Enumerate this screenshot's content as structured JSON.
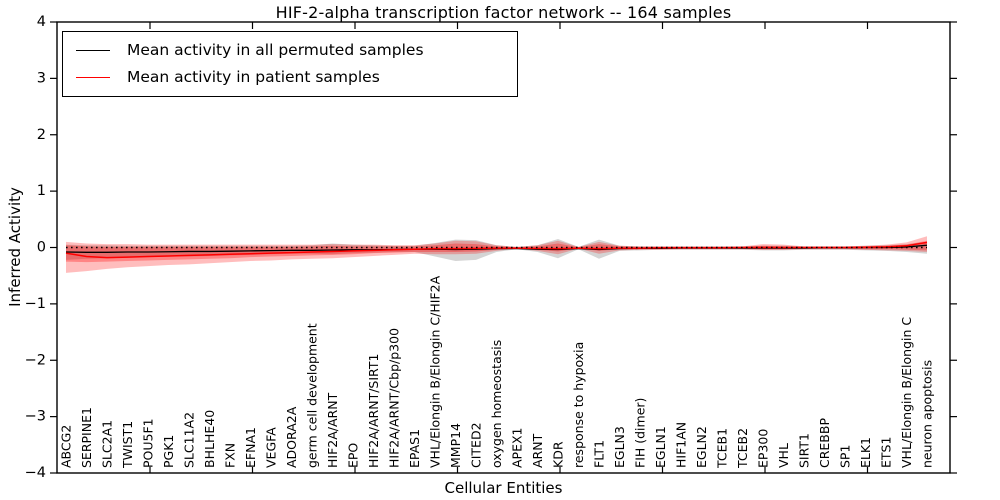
{
  "title": "HIF-2-alpha transcription factor network -- 164 samples",
  "legend": {
    "items": [
      {
        "label": "Mean activity in all permuted samples",
        "color": "#000000"
      },
      {
        "label": "Mean activity in patient samples",
        "color": "#ff0000"
      }
    ],
    "position": "upper left"
  },
  "colors": {
    "permuted_line": "#000000",
    "patient_line": "#ff0000",
    "permuted_band": "#000000",
    "patient_band": "#ff0000",
    "axis": "#000000",
    "background": "#ffffff"
  },
  "chart_data": {
    "type": "line",
    "title": "HIF-2-alpha transcription factor network -- 164 samples",
    "xlabel": "Cellular Entities",
    "ylabel": "Inferred Activity",
    "ylim": [
      -4,
      4
    ],
    "yticks": [
      4,
      3,
      2,
      1,
      0,
      -1,
      -2,
      -3,
      -4
    ],
    "yticklabels": [
      "4",
      "3",
      "2",
      "1",
      "0",
      "−1",
      "−2",
      "−3",
      "−4"
    ],
    "grid": false,
    "zero_reference_line": {
      "y": 0,
      "style": "dotted",
      "color": "#000000"
    },
    "top_tick_category_indices": [
      4,
      9,
      14,
      19,
      24,
      29,
      34,
      39
    ],
    "categories": [
      "ABCG2",
      "SERPINE1",
      "SLC2A1",
      "TWIST1",
      "POU5F1",
      "PGK1",
      "SLC11A2",
      "BHLHE40",
      "FXN",
      "EFNA1",
      "VEGFA",
      "ADORA2A",
      "germ cell development",
      "HIF2A/ARNT",
      "EPO",
      "HIF2A/ARNT/SIRT1",
      "HIF2A/ARNT/Cbp/p300",
      "EPAS1",
      "VHL/Elongin B/Elongin C/HIF2A",
      "MMP14",
      "CITED2",
      "oxygen homeostasis",
      "APEX1",
      "ARNT",
      "KDR",
      "response to hypoxia",
      "FLT1",
      "EGLN3",
      "FIH (dimer)",
      "EGLN1",
      "HIF1AN",
      "EGLN2",
      "TCEB1",
      "TCEB2",
      "EP300",
      "VHL",
      "SIRT1",
      "CREBBP",
      "SP1",
      "ELK1",
      "ETS1",
      "VHL/Elongin B/Elongin C",
      "neuron apoptosis"
    ],
    "series": [
      {
        "name": "Mean activity in all permuted samples",
        "color": "#000000",
        "values": [
          -0.08,
          -0.085,
          -0.085,
          -0.08,
          -0.08,
          -0.075,
          -0.07,
          -0.07,
          -0.065,
          -0.06,
          -0.055,
          -0.05,
          -0.05,
          -0.045,
          -0.04,
          -0.04,
          -0.035,
          -0.03,
          -0.03,
          -0.035,
          -0.03,
          -0.02,
          -0.02,
          -0.03,
          -0.035,
          -0.02,
          -0.035,
          -0.02,
          -0.015,
          -0.015,
          -0.01,
          -0.01,
          -0.01,
          -0.01,
          -0.01,
          -0.01,
          -0.01,
          -0.005,
          -0.005,
          0,
          0,
          0.01,
          0.04
        ]
      },
      {
        "name": "Mean activity in patient samples",
        "color": "#ff0000",
        "values": [
          -0.1,
          -0.16,
          -0.18,
          -0.17,
          -0.16,
          -0.15,
          -0.14,
          -0.13,
          -0.12,
          -0.11,
          -0.1,
          -0.09,
          -0.08,
          -0.07,
          -0.06,
          -0.05,
          -0.04,
          -0.03,
          -0.02,
          -0.02,
          -0.015,
          -0.01,
          -0.01,
          -0.015,
          -0.02,
          -0.01,
          -0.02,
          -0.01,
          -0.01,
          -0.005,
          -0.005,
          -0.005,
          -0.005,
          0,
          0,
          0,
          0,
          0,
          0,
          0.005,
          0.01,
          0.03,
          0.09
        ]
      }
    ],
    "bands": [
      {
        "name": "permuted-envelope",
        "color": "#000000",
        "opacity": 0.17,
        "upper": [
          0.05,
          0.04,
          0.04,
          0.03,
          0.03,
          0.03,
          0.03,
          0.03,
          0.03,
          0.03,
          0.03,
          0.03,
          0.04,
          0.07,
          0.05,
          0.04,
          0.03,
          0.03,
          0.08,
          0.14,
          0.13,
          0.04,
          0.01,
          0.04,
          0.15,
          0.01,
          0.14,
          0.03,
          0.02,
          0.02,
          0.02,
          0.02,
          0.02,
          0.02,
          0.03,
          0.03,
          0.02,
          0.02,
          0.02,
          0.03,
          0.04,
          0.06,
          0.1
        ],
        "lower": [
          -0.22,
          -0.2,
          -0.19,
          -0.18,
          -0.17,
          -0.16,
          -0.16,
          -0.15,
          -0.14,
          -0.13,
          -0.12,
          -0.11,
          -0.11,
          -0.12,
          -0.1,
          -0.09,
          -0.08,
          -0.08,
          -0.16,
          -0.24,
          -0.22,
          -0.08,
          -0.03,
          -0.08,
          -0.19,
          -0.03,
          -0.2,
          -0.06,
          -0.05,
          -0.04,
          -0.04,
          -0.04,
          -0.04,
          -0.04,
          -0.05,
          -0.05,
          -0.04,
          -0.04,
          -0.04,
          -0.05,
          -0.06,
          -0.08,
          -0.11
        ]
      },
      {
        "name": "patient-envelope-outer",
        "color": "#ff0000",
        "opacity": 0.26,
        "upper": [
          0.1,
          0.07,
          0.06,
          0.06,
          0.05,
          0.05,
          0.05,
          0.05,
          0.05,
          0.05,
          0.05,
          0.05,
          0.05,
          0.06,
          0.05,
          0.05,
          0.04,
          0.04,
          0.07,
          0.12,
          0.11,
          0.04,
          0.01,
          0.04,
          0.12,
          0.01,
          0.1,
          0.03,
          0.02,
          0.02,
          0.02,
          0.02,
          0.02,
          0.02,
          0.06,
          0.05,
          0.02,
          0.02,
          0.02,
          0.03,
          0.05,
          0.09,
          0.2
        ],
        "lower": [
          -0.45,
          -0.42,
          -0.38,
          -0.35,
          -0.33,
          -0.31,
          -0.3,
          -0.28,
          -0.26,
          -0.24,
          -0.23,
          -0.21,
          -0.2,
          -0.19,
          -0.17,
          -0.15,
          -0.13,
          -0.11,
          -0.12,
          -0.12,
          -0.11,
          -0.06,
          -0.02,
          -0.06,
          -0.12,
          -0.02,
          -0.11,
          -0.05,
          -0.04,
          -0.04,
          -0.03,
          -0.03,
          -0.03,
          -0.03,
          -0.04,
          -0.04,
          -0.03,
          -0.03,
          -0.03,
          -0.04,
          -0.05,
          -0.06,
          -0.08
        ]
      },
      {
        "name": "patient-envelope-inner",
        "color": "#ff0000",
        "opacity": 0.3,
        "upper": [
          0.04,
          0.02,
          0.01,
          0.01,
          0.01,
          0.01,
          0.01,
          0.01,
          0.01,
          0.01,
          0.01,
          0.01,
          0.02,
          0.03,
          0.02,
          0.02,
          0.02,
          0.02,
          0.04,
          0.07,
          0.06,
          0.02,
          0.005,
          0.02,
          0.07,
          0.005,
          0.06,
          0.02,
          0.01,
          0.01,
          0.01,
          0.01,
          0.01,
          0.01,
          0.03,
          0.02,
          0.01,
          0.01,
          0.01,
          0.02,
          0.03,
          0.05,
          0.12
        ],
        "lower": [
          -0.25,
          -0.26,
          -0.25,
          -0.24,
          -0.23,
          -0.22,
          -0.21,
          -0.2,
          -0.19,
          -0.17,
          -0.16,
          -0.15,
          -0.14,
          -0.13,
          -0.12,
          -0.1,
          -0.09,
          -0.08,
          -0.08,
          -0.08,
          -0.07,
          -0.04,
          -0.01,
          -0.04,
          -0.07,
          -0.01,
          -0.06,
          -0.03,
          -0.03,
          -0.02,
          -0.02,
          -0.02,
          -0.02,
          -0.02,
          -0.03,
          -0.03,
          -0.02,
          -0.02,
          -0.02,
          -0.03,
          -0.03,
          -0.04,
          -0.05
        ]
      }
    ]
  }
}
